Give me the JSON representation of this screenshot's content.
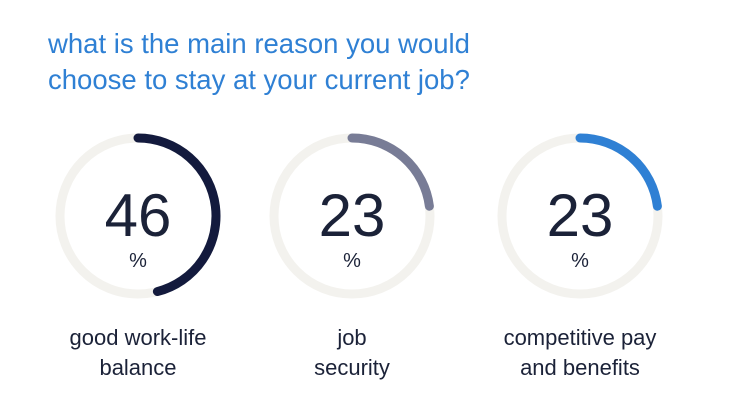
{
  "title": {
    "line1": "what is the main reason you would",
    "line2": "choose to stay at your current job?"
  },
  "colors": {
    "title": "#2f80d4",
    "track": "#f3f2ee",
    "text": "#1b2238"
  },
  "chart_data": {
    "type": "donut",
    "unit": "%",
    "items": [
      {
        "value": 46,
        "label_line1": "good work-life",
        "label_line2": "balance",
        "color": "#131a3d"
      },
      {
        "value": 23,
        "label_line1": "job",
        "label_line2": "security",
        "color": "#787c96"
      },
      {
        "value": 23,
        "label_line1": "competitive pay",
        "label_line2": "and benefits",
        "color": "#2f80d4"
      }
    ]
  }
}
